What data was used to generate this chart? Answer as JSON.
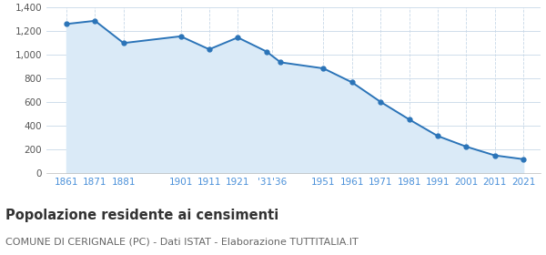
{
  "years": [
    1861,
    1871,
    1881,
    1901,
    1911,
    1921,
    1931,
    1936,
    1951,
    1961,
    1971,
    1981,
    1991,
    2001,
    2011,
    2021
  ],
  "values": [
    1262,
    1289,
    1101,
    1158,
    1048,
    1148,
    1030,
    938,
    887,
    769,
    604,
    456,
    316,
    226,
    152,
    120
  ],
  "tick_positions": [
    1861,
    1871,
    1881,
    1901,
    1911,
    1921,
    1933,
    1951,
    1961,
    1971,
    1981,
    1991,
    2001,
    2011,
    2021
  ],
  "tick_labels": [
    "1861",
    "1871",
    "1881",
    "1901",
    "1911",
    "1921",
    "‱36",
    "1951",
    "1961",
    "1971",
    "1981",
    "1991",
    "2001",
    "2011",
    "2021"
  ],
  "ylim": [
    0,
    1400
  ],
  "yticks": [
    0,
    200,
    400,
    600,
    800,
    1000,
    1200,
    1400
  ],
  "xlim_left": 1854,
  "xlim_right": 2027,
  "line_color": "#2b74b8",
  "fill_color": "#daeaf7",
  "marker_color": "#2b74b8",
  "grid_color": "#c8d8e8",
  "bg_color": "#ffffff",
  "plot_bg_color": "#ffffff",
  "title": "Popolazione residente ai censimenti",
  "subtitle": "COMUNE DI CERIGNALE (PC) - Dati ISTAT - Elaborazione TUTTITALIA.IT",
  "title_fontsize": 10.5,
  "subtitle_fontsize": 8.0,
  "tick_label_color": "#4a90d9"
}
